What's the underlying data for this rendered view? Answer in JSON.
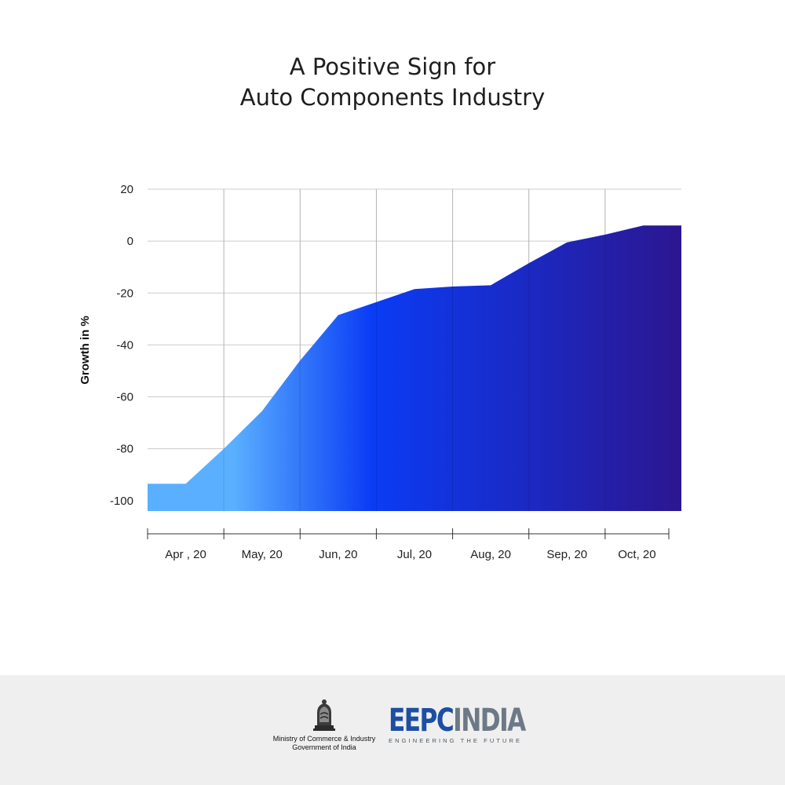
{
  "title": {
    "line1": "A Positive Sign for",
    "line2": "Auto Components Industry"
  },
  "chart_data": {
    "type": "area",
    "title": "A Positive Sign for Auto Components Industry",
    "xlabel": "",
    "ylabel": "Growth in %",
    "ylim": [
      -104,
      20
    ],
    "yticks": [
      20,
      0,
      -20,
      -40,
      -60,
      -80,
      -100
    ],
    "categories": [
      "Apr , 20",
      "May, 20",
      "Jun, 20",
      "Jul, 20",
      "Aug, 20",
      "Sep, 20",
      "Oct, 20"
    ],
    "x": [
      0,
      0.5,
      1,
      1.5,
      2,
      2.5,
      3,
      3.5,
      4,
      4.5,
      5,
      5.5,
      6,
      6.5,
      7
    ],
    "values": [
      -93.5,
      -93.5,
      -80,
      -65.5,
      -46,
      -28.5,
      -23.5,
      -18.5,
      -17.5,
      -17,
      -8.5,
      -0.5,
      2.5,
      6,
      6
    ],
    "grid": true,
    "fill": "gradient light blue to dark indigo",
    "colors": {
      "start": "#5ab0ff",
      "mid": "#0a3cf5",
      "end": "#2c1690",
      "grid": "#cccccc",
      "axis": "#333333"
    }
  },
  "footer": {
    "emblem_caption": "सत्यमेव जयते",
    "ministry_line1": "Ministry of Commerce & Industry",
    "ministry_line2": "Government of India",
    "brand_part1": "EEPC",
    "brand_part2": "INDIA",
    "tagline": "ENGINEERING THE FUTURE"
  }
}
